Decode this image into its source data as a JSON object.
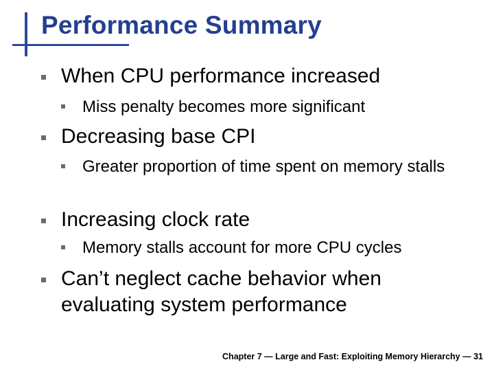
{
  "slide": {
    "title": "Performance Summary",
    "bullets": [
      {
        "text": "When CPU performance increased",
        "sub": [
          "Miss penalty becomes more significant"
        ]
      },
      {
        "text": "Decreasing base CPI",
        "sub": [
          "Greater proportion of time spent on memory stalls"
        ]
      },
      {
        "text": "Increasing clock rate",
        "sub": [
          "Memory stalls account for more CPU cycles"
        ]
      },
      {
        "text": "Can’t neglect cache behavior when evaluating system performance",
        "sub": []
      }
    ],
    "footer": "Chapter 7 — Large and Fast: Exploiting Memory Hierarchy — 31"
  }
}
